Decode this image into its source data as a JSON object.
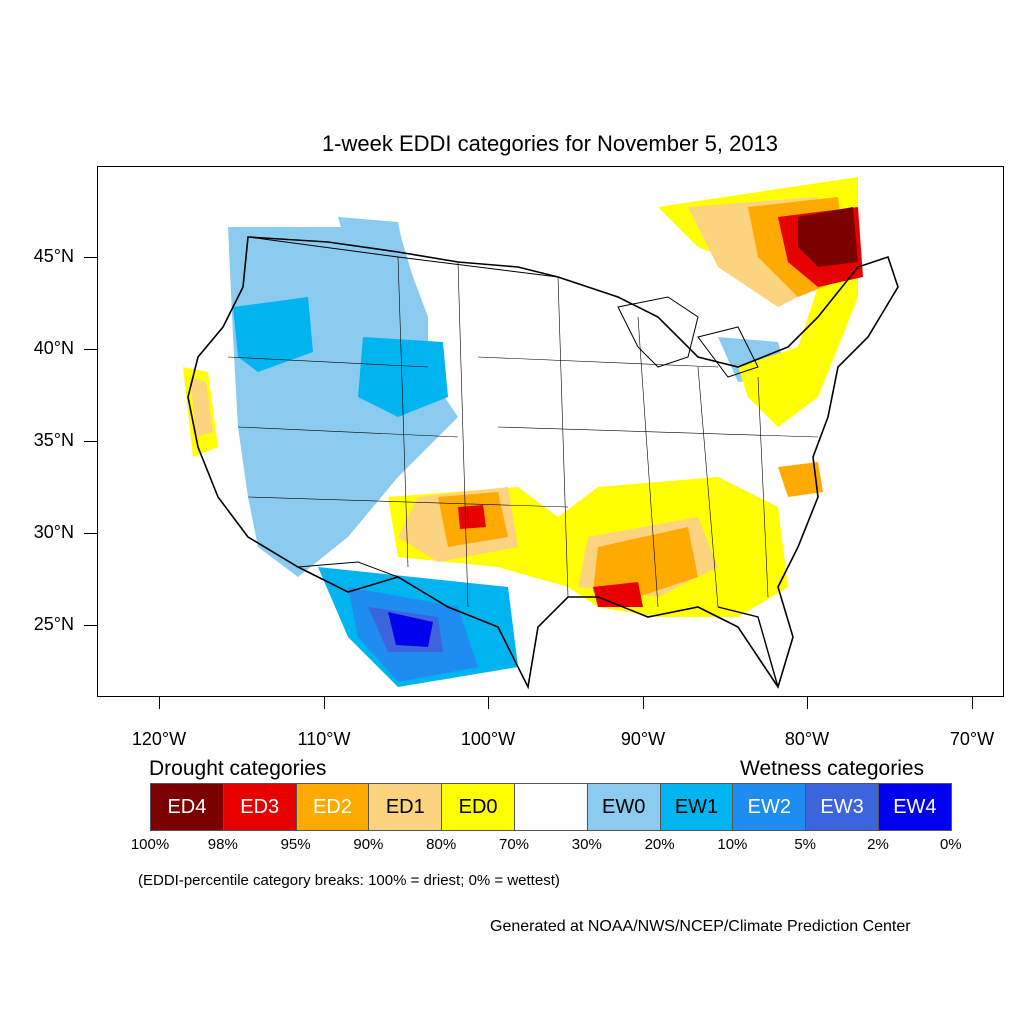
{
  "title": "1-week EDDI categories for November 5, 2013",
  "map": {
    "lat_labels": [
      "45°N",
      "40°N",
      "35°N",
      "30°N",
      "25°N"
    ],
    "lon_labels": [
      "120°W",
      "110°W",
      "100°W",
      "90°W",
      "80°W",
      "70°W"
    ]
  },
  "legend": {
    "drought_heading": "Drought categories",
    "wetness_heading": "Wetness categories",
    "categories": [
      {
        "label": "ED4",
        "color": "#7b0000",
        "text_color": "#ffffff"
      },
      {
        "label": "ED3",
        "color": "#e60000",
        "text_color": "#ffffff"
      },
      {
        "label": "ED2",
        "color": "#ffaa00",
        "text_color": "#ffffff"
      },
      {
        "label": "ED1",
        "color": "#fcd37f",
        "text_color": "#000000"
      },
      {
        "label": "ED0",
        "color": "#ffff00",
        "text_color": "#000000"
      },
      {
        "label": "",
        "color": "#ffffff",
        "text_color": "#000000"
      },
      {
        "label": "EW0",
        "color": "#8ccbf0",
        "text_color": "#000000"
      },
      {
        "label": "EW1",
        "color": "#00b4f0",
        "text_color": "#000000"
      },
      {
        "label": "EW2",
        "color": "#1e8cf0",
        "text_color": "#ffffff"
      },
      {
        "label": "EW3",
        "color": "#3c64dc",
        "text_color": "#ffffff"
      },
      {
        "label": "EW4",
        "color": "#0000ee",
        "text_color": "#ffffff"
      }
    ],
    "breaks": [
      "100%",
      "98%",
      "95%",
      "90%",
      "80%",
      "70%",
      "30%",
      "20%",
      "10%",
      "5%",
      "2%",
      "0%"
    ]
  },
  "note": "(EDDI-percentile category breaks: 100% = driest; 0% = wettest)",
  "credit": "Generated at NOAA/NWS/NCEP/Climate Prediction Center"
}
